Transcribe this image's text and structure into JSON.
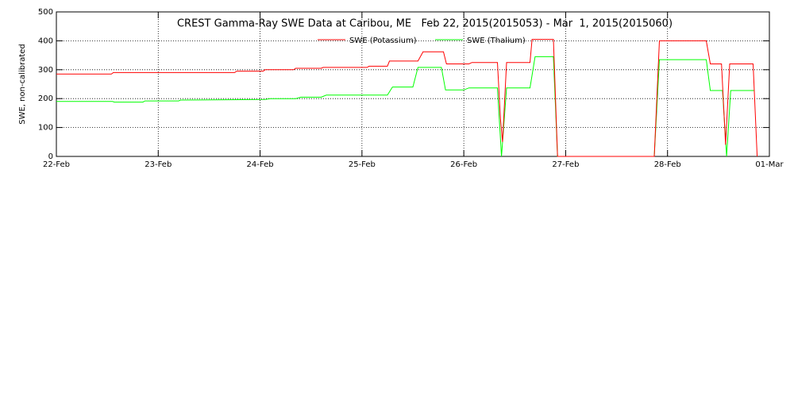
{
  "chart_data": {
    "type": "line",
    "title": "CREST Gamma-Ray SWE Data at Caribou, ME   Feb 22, 2015(2015053) - Mar  1, 2015(2015060)",
    "y_label": "SWE, non-calibrated",
    "xlim": [
      0,
      7
    ],
    "xticks": [
      {
        "value": 0,
        "label": "22-Feb"
      },
      {
        "value": 1,
        "label": "23-Feb"
      },
      {
        "value": 2,
        "label": "24-Feb"
      },
      {
        "value": 3,
        "label": "25-Feb"
      },
      {
        "value": 4,
        "label": "26-Feb"
      },
      {
        "value": 5,
        "label": "27-Feb"
      },
      {
        "value": 6,
        "label": "28-Feb"
      },
      {
        "value": 7,
        "label": "01-Mar"
      }
    ],
    "ylim": [
      0,
      500
    ],
    "yticks": [
      0,
      100,
      200,
      300,
      400,
      500
    ],
    "grid": true,
    "series": [
      {
        "name": "SWE (Potassium)",
        "color": "#ff0000",
        "x": [
          0,
          0.54,
          0.56,
          1.75,
          1.77,
          2.03,
          2.05,
          2.33,
          2.35,
          2.6,
          2.62,
          3.05,
          3.07,
          3.25,
          3.27,
          3.55,
          3.6,
          3.8,
          3.83,
          4.05,
          4.08,
          4.33,
          4.36,
          4.38,
          4.42,
          4.65,
          4.67,
          4.88,
          4.92,
          5.87,
          5.92,
          6.38,
          6.42,
          6.53,
          6.57,
          6.61,
          6.84,
          6.88
        ],
        "values": [
          285,
          285,
          290,
          290,
          295,
          295,
          300,
          300,
          305,
          305,
          308,
          308,
          312,
          312,
          330,
          330,
          362,
          362,
          320,
          320,
          325,
          325,
          130,
          50,
          325,
          325,
          405,
          405,
          0,
          0,
          400,
          400,
          320,
          320,
          40,
          320,
          320,
          0
        ]
      },
      {
        "name": "SWE (Thalium)",
        "color": "#00ff00",
        "x": [
          0,
          0.55,
          0.57,
          0.85,
          0.87,
          1.2,
          1.22,
          2.05,
          2.1,
          2.35,
          2.4,
          2.6,
          2.65,
          3.25,
          3.3,
          3.5,
          3.55,
          3.78,
          3.82,
          4.0,
          4.05,
          4.33,
          4.37,
          4.42,
          4.65,
          4.7,
          4.88,
          4.92,
          5.87,
          5.92,
          6.38,
          6.42,
          6.54,
          6.58,
          6.62,
          6.85
        ],
        "values": [
          190,
          190,
          188,
          188,
          192,
          192,
          195,
          197,
          200,
          200,
          205,
          205,
          212,
          212,
          240,
          240,
          308,
          308,
          230,
          230,
          237,
          237,
          0,
          237,
          237,
          345,
          345,
          0,
          0,
          335,
          335,
          228,
          228,
          0,
          228,
          228
        ]
      }
    ]
  }
}
